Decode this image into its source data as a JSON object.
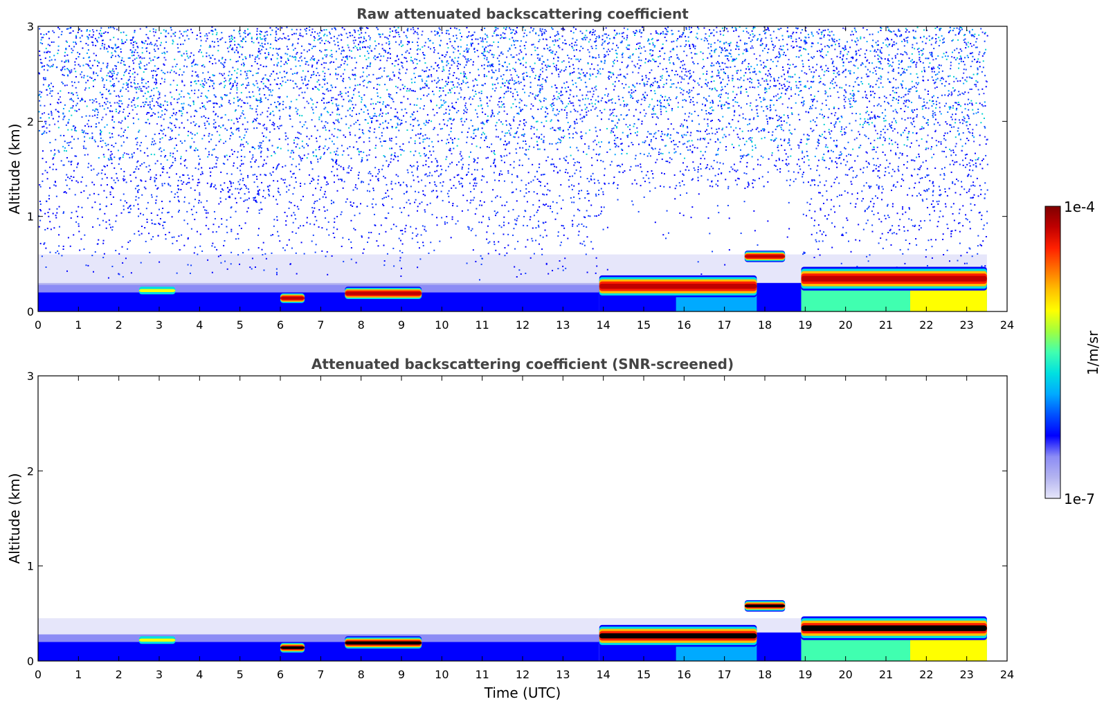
{
  "colors": {
    "background": "#ffffff",
    "title": "#444444",
    "axis": "#000000",
    "saturated": "#000000",
    "colormap": [
      "#e6e6fa",
      "#b4b4f0",
      "#8c8cf5",
      "#0000ff",
      "#0050ff",
      "#00aaff",
      "#00e0e0",
      "#40ffb0",
      "#a0ff40",
      "#ffff00",
      "#ffc000",
      "#ff7000",
      "#ff2000",
      "#c00000",
      "#800000"
    ]
  },
  "chart_data": [
    {
      "type": "heatmap",
      "title": "Raw attenuated backscattering coefficient",
      "xlabel": "",
      "ylabel": "Altitude (km)",
      "xlim": [
        0,
        24
      ],
      "ylim": [
        0,
        3
      ],
      "xticks": [
        "0",
        "1",
        "2",
        "3",
        "4",
        "5",
        "6",
        "7",
        "8",
        "9",
        "10",
        "11",
        "12",
        "13",
        "14",
        "15",
        "16",
        "17",
        "18",
        "19",
        "20",
        "21",
        "22",
        "23",
        "24"
      ],
      "yticks": [
        "0",
        "1",
        "2",
        "3"
      ],
      "data_end_hour": 23.5,
      "noise_bands": [
        {
          "altitude_range_km": [
            0.6,
            3.0
          ],
          "level": "mixed blue/cyan noise (~1e-6 to 1e-5)"
        },
        {
          "altitude_range_km": [
            0.3,
            0.6
          ],
          "level": "faint lavender (~1e-7)"
        }
      ],
      "features": [
        {
          "time_range_h": [
            0.0,
            13.9
          ],
          "altitude_range_km": [
            0.0,
            0.25
          ],
          "description": "blue near-surface aerosol layer",
          "value": "~1e-6"
        },
        {
          "time_range_h": [
            2.5,
            3.4
          ],
          "altitude_range_km": [
            0.18,
            0.26
          ],
          "description": "small cloud patch",
          "value": "~1e-5"
        },
        {
          "time_range_h": [
            6.0,
            6.6
          ],
          "altitude_range_km": [
            0.08,
            0.2
          ],
          "description": "cloud",
          "value": "~1e-4"
        },
        {
          "time_range_h": [
            7.6,
            9.5
          ],
          "altitude_range_km": [
            0.12,
            0.26
          ],
          "description": "stratocumulus layer",
          "value": "~1e-4"
        },
        {
          "time_range_h": [
            13.9,
            17.8
          ],
          "altitude_range_km": [
            0.15,
            0.38
          ],
          "description": "rising cloud base",
          "value": "~1e-4"
        },
        {
          "time_range_h": [
            17.5,
            18.5
          ],
          "altitude_range_km": [
            0.52,
            0.64
          ],
          "description": "elevated cloud",
          "value": "~1e-4"
        },
        {
          "time_range_h": [
            18.9,
            23.5
          ],
          "altitude_range_km": [
            0.22,
            0.47
          ],
          "description": "stratocumulus deck",
          "value": "~1e-4"
        }
      ]
    },
    {
      "type": "heatmap",
      "title": "Attenuated backscattering coefficient (SNR-screened)",
      "xlabel": "Time (UTC)",
      "ylabel": "Altitude (km)",
      "xlim": [
        0,
        24
      ],
      "ylim": [
        0,
        3
      ],
      "xticks": [
        "0",
        "1",
        "2",
        "3",
        "4",
        "5",
        "6",
        "7",
        "8",
        "9",
        "10",
        "11",
        "12",
        "13",
        "14",
        "15",
        "16",
        "17",
        "18",
        "19",
        "20",
        "21",
        "22",
        "23",
        "24"
      ],
      "yticks": [
        "0",
        "1",
        "2",
        "3"
      ],
      "data_end_hour": 23.5,
      "features": [
        {
          "time_range_h": [
            0.0,
            13.9
          ],
          "altitude_range_km": [
            0.0,
            0.45
          ],
          "description": "screened aerosol layer (lavender to blue)",
          "value": "1e-7 to 1e-6"
        },
        {
          "time_range_h": [
            2.5,
            3.4
          ],
          "altitude_range_km": [
            0.18,
            0.26
          ],
          "description": "small cloud patch",
          "value": "~1e-5"
        },
        {
          "time_range_h": [
            6.0,
            6.6
          ],
          "altitude_range_km": [
            0.08,
            0.2
          ],
          "description": "cloud (saturated)",
          "value": ">1e-4"
        },
        {
          "time_range_h": [
            7.6,
            9.5
          ],
          "altitude_range_km": [
            0.12,
            0.26
          ],
          "description": "stratocumulus layer (saturated core)",
          "value": ">1e-4"
        },
        {
          "time_range_h": [
            13.9,
            17.8
          ],
          "altitude_range_km": [
            0.15,
            0.38
          ],
          "description": "rising cloud base (saturated core)",
          "value": ">1e-4"
        },
        {
          "time_range_h": [
            17.5,
            18.5
          ],
          "altitude_range_km": [
            0.52,
            0.64
          ],
          "description": "elevated cloud (saturated core)",
          "value": ">1e-4"
        },
        {
          "time_range_h": [
            18.9,
            23.5
          ],
          "altitude_range_km": [
            0.22,
            0.47
          ],
          "description": "stratocumulus deck (saturated core)",
          "value": ">1e-4"
        }
      ]
    }
  ],
  "colorbar": {
    "min_label": "1e-7",
    "max_label": "1e-4",
    "unit_label": "1/m/sr",
    "scale": "log",
    "range": [
      1e-07,
      0.0001
    ]
  }
}
